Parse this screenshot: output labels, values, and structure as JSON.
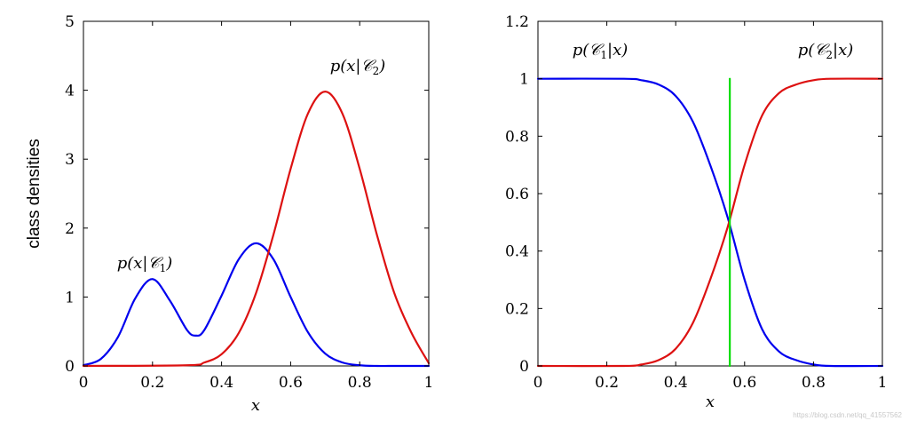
{
  "colors": {
    "class1": "#0000ee",
    "class2": "#dd1111",
    "boundary": "#00dd00"
  },
  "watermark": "https://blog.csdn.net/qq_41557562",
  "chart_data": [
    {
      "type": "line",
      "title": "",
      "xlabel": "x",
      "ylabel": "class densities",
      "xlim": [
        0,
        1
      ],
      "ylim": [
        0,
        5
      ],
      "xticks": [
        "0",
        "0.2",
        "0.4",
        "0.6",
        "0.8",
        "1"
      ],
      "yticks": [
        "0",
        "1",
        "2",
        "3",
        "4",
        "5"
      ],
      "grid": false,
      "series": [
        {
          "name": "p(x|C1)",
          "color": "#0000ee",
          "x": [
            0,
            0.05,
            0.1,
            0.15,
            0.2,
            0.25,
            0.3,
            0.325,
            0.35,
            0.4,
            0.45,
            0.5,
            0.55,
            0.6,
            0.65,
            0.7,
            0.75,
            0.8,
            0.85,
            0.9,
            0.95,
            1.0
          ],
          "y": [
            0.01,
            0.1,
            0.42,
            0.98,
            1.26,
            0.95,
            0.52,
            0.44,
            0.52,
            1.02,
            1.55,
            1.78,
            1.55,
            1.0,
            0.49,
            0.18,
            0.05,
            0.01,
            0.0,
            0.0,
            0.0,
            0.0
          ]
        },
        {
          "name": "p(x|C2)",
          "color": "#dd1111",
          "x": [
            0,
            0.3,
            0.35,
            0.4,
            0.45,
            0.5,
            0.55,
            0.6,
            0.65,
            0.7,
            0.75,
            0.8,
            0.85,
            0.9,
            0.95,
            1.0
          ],
          "y": [
            0.0,
            0.01,
            0.05,
            0.17,
            0.48,
            1.06,
            1.9,
            2.86,
            3.66,
            3.98,
            3.66,
            2.86,
            1.9,
            1.06,
            0.48,
            0.04
          ]
        }
      ],
      "annotations": [
        {
          "text": "p(x|C1)",
          "x": 0.2,
          "y": 1.45
        },
        {
          "text": "p(x|C2)",
          "x": 0.7,
          "y": 4.3
        }
      ]
    },
    {
      "type": "line",
      "title": "",
      "xlabel": "x",
      "ylabel": "",
      "xlim": [
        0,
        1
      ],
      "ylim": [
        0,
        1.2
      ],
      "xticks": [
        "0",
        "0.2",
        "0.4",
        "0.6",
        "0.8",
        "1"
      ],
      "yticks": [
        "0",
        "0.2",
        "0.4",
        "0.6",
        "0.8",
        "1",
        "1.2"
      ],
      "grid": false,
      "series": [
        {
          "name": "p(C1|x)",
          "color": "#0000ee",
          "x": [
            0,
            0.25,
            0.3,
            0.35,
            0.4,
            0.45,
            0.5,
            0.55,
            0.6,
            0.65,
            0.7,
            0.75,
            0.8,
            0.85,
            1.0
          ],
          "y": [
            1.0,
            1.0,
            0.995,
            0.98,
            0.94,
            0.85,
            0.7,
            0.52,
            0.3,
            0.13,
            0.05,
            0.02,
            0.005,
            0.0,
            0.0
          ]
        },
        {
          "name": "p(C2|x)",
          "color": "#dd1111",
          "x": [
            0,
            0.25,
            0.3,
            0.35,
            0.4,
            0.45,
            0.5,
            0.55,
            0.6,
            0.65,
            0.7,
            0.75,
            0.8,
            0.85,
            1.0
          ],
          "y": [
            0.0,
            0.0,
            0.005,
            0.02,
            0.06,
            0.15,
            0.3,
            0.48,
            0.7,
            0.87,
            0.95,
            0.98,
            0.995,
            1.0,
            1.0
          ]
        },
        {
          "name": "decision boundary",
          "color": "#00dd00",
          "x": [
            0.557,
            0.557
          ],
          "y": [
            0,
            1.0
          ]
        }
      ],
      "annotations": [
        {
          "text": "p(C1|x)",
          "x": 0.11,
          "y": 1.08
        },
        {
          "text": "p(C2|x)",
          "x": 0.88,
          "y": 1.08
        }
      ]
    }
  ]
}
